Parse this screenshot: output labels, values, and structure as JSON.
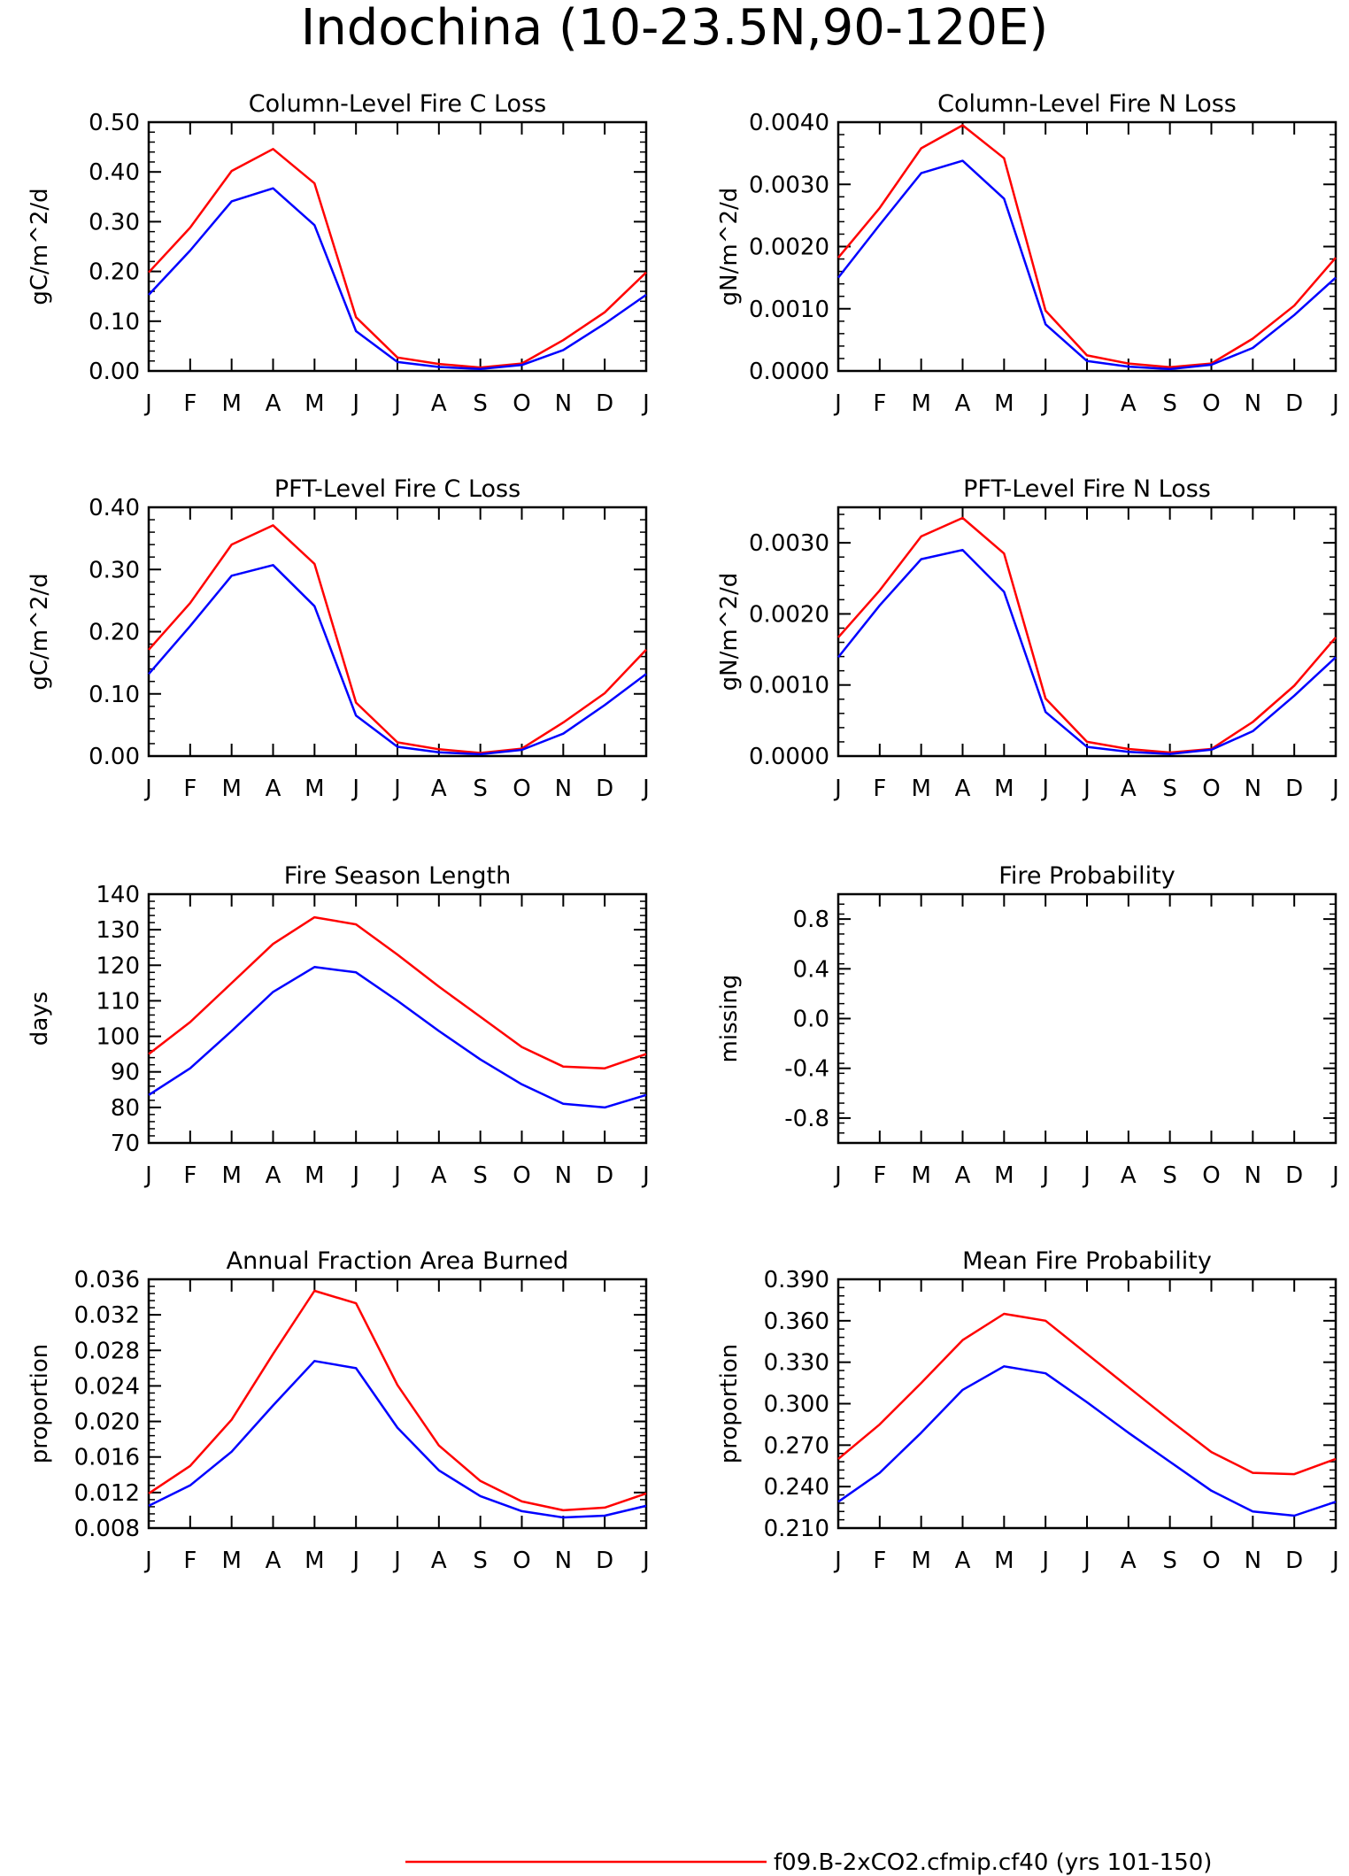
{
  "figure": {
    "title": "Indochina (10-23.5N,90-120E)",
    "legend": [
      {
        "label": "f09.B-2xCO2.cfmip.cf40 (yrs 101-150)",
        "color": "#ff0000"
      }
    ]
  },
  "colors": {
    "series_a": "#ff0000",
    "series_b": "#0000ff",
    "axis": "#000000"
  },
  "chart_data": [
    {
      "type": "line",
      "title": "Column-Level Fire C Loss",
      "ylabel": "gC/m^2/d",
      "categories": [
        "J",
        "F",
        "M",
        "A",
        "M",
        "J",
        "J",
        "A",
        "S",
        "O",
        "N",
        "D",
        "J"
      ],
      "ylim": [
        0,
        0.5
      ],
      "yticks": [
        "0.00",
        "0.10",
        "0.20",
        "0.30",
        "0.40",
        "0.50"
      ],
      "series": [
        {
          "color": "#ff0000",
          "values": [
            0.198,
            0.288,
            0.402,
            0.446,
            0.377,
            0.108,
            0.027,
            0.014,
            0.007,
            0.015,
            0.062,
            0.118,
            0.198
          ]
        },
        {
          "color": "#0000ff",
          "values": [
            0.153,
            0.242,
            0.341,
            0.367,
            0.293,
            0.08,
            0.018,
            0.008,
            0.004,
            0.012,
            0.042,
            0.095,
            0.153
          ]
        }
      ]
    },
    {
      "type": "line",
      "title": "Column-Level Fire N Loss",
      "ylabel": "gN/m^2/d",
      "categories": [
        "J",
        "F",
        "M",
        "A",
        "M",
        "J",
        "J",
        "A",
        "S",
        "O",
        "N",
        "D",
        "J"
      ],
      "ylim": [
        0,
        0.004
      ],
      "yticks": [
        "0.0000",
        "0.0010",
        "0.0020",
        "0.0030",
        "0.0040"
      ],
      "series": [
        {
          "color": "#ff0000",
          "values": [
            0.00182,
            0.00262,
            0.00358,
            0.00395,
            0.00342,
            0.00097,
            0.00025,
            0.00012,
            6e-05,
            0.00012,
            0.00052,
            0.00105,
            0.00182
          ]
        },
        {
          "color": "#0000ff",
          "values": [
            0.0015,
            0.00235,
            0.00318,
            0.00338,
            0.00277,
            0.00075,
            0.00016,
            7e-05,
            3e-05,
            0.0001,
            0.00037,
            0.0009,
            0.0015
          ]
        }
      ]
    },
    {
      "type": "line",
      "title": "PFT-Level Fire C Loss",
      "ylabel": "gC/m^2/d",
      "categories": [
        "J",
        "F",
        "M",
        "A",
        "M",
        "J",
        "J",
        "A",
        "S",
        "O",
        "N",
        "D",
        "J"
      ],
      "ylim": [
        0,
        0.4
      ],
      "yticks": [
        "0.00",
        "0.10",
        "0.20",
        "0.30",
        "0.40"
      ],
      "series": [
        {
          "color": "#ff0000",
          "values": [
            0.171,
            0.246,
            0.34,
            0.371,
            0.309,
            0.086,
            0.022,
            0.011,
            0.005,
            0.012,
            0.054,
            0.101,
            0.171
          ]
        },
        {
          "color": "#0000ff",
          "values": [
            0.132,
            0.209,
            0.29,
            0.307,
            0.241,
            0.065,
            0.015,
            0.006,
            0.003,
            0.01,
            0.036,
            0.082,
            0.132
          ]
        }
      ]
    },
    {
      "type": "line",
      "title": "PFT-Level Fire N Loss",
      "ylabel": "gN/m^2/d",
      "categories": [
        "J",
        "F",
        "M",
        "A",
        "M",
        "J",
        "J",
        "A",
        "S",
        "O",
        "N",
        "D",
        "J"
      ],
      "ylim": [
        0,
        0.0035
      ],
      "yticks": [
        "0.0000",
        "0.0010",
        "0.0020",
        "0.0030"
      ],
      "series": [
        {
          "color": "#ff0000",
          "values": [
            0.00167,
            0.00233,
            0.00309,
            0.00335,
            0.00285,
            0.00081,
            0.0002,
            0.0001,
            5e-05,
            0.0001,
            0.00048,
            0.00099,
            0.00167
          ]
        },
        {
          "color": "#0000ff",
          "values": [
            0.00139,
            0.00212,
            0.00277,
            0.0029,
            0.00231,
            0.00062,
            0.00013,
            6e-05,
            3e-05,
            9e-05,
            0.00035,
            0.00085,
            0.00139
          ]
        }
      ]
    },
    {
      "type": "line",
      "title": "Fire Season Length",
      "ylabel": "days",
      "categories": [
        "J",
        "F",
        "M",
        "A",
        "M",
        "J",
        "J",
        "A",
        "S",
        "O",
        "N",
        "D",
        "J"
      ],
      "ylim": [
        70,
        140
      ],
      "yticks": [
        "70",
        "80",
        "90",
        "100",
        "110",
        "120",
        "130",
        "140"
      ],
      "series": [
        {
          "color": "#ff0000",
          "values": [
            95,
            104,
            115,
            126,
            133.5,
            131.5,
            123,
            114,
            105.5,
            97,
            91.5,
            91,
            95
          ]
        },
        {
          "color": "#0000ff",
          "values": [
            83.5,
            91,
            101.5,
            112.5,
            119.5,
            118,
            110,
            101.5,
            93.5,
            86.5,
            81,
            80,
            83.5
          ]
        }
      ]
    },
    {
      "type": "line",
      "title": "Fire Probability",
      "ylabel": "missing",
      "categories": [
        "J",
        "F",
        "M",
        "A",
        "M",
        "J",
        "J",
        "A",
        "S",
        "O",
        "N",
        "D",
        "J"
      ],
      "ylim": [
        -1.0,
        1.0
      ],
      "yticks": [
        "-0.8",
        "-0.4",
        "0.0",
        "0.4",
        "0.8"
      ],
      "ytick_values": [
        -0.8,
        -0.4,
        0.0,
        0.4,
        0.8
      ],
      "series": []
    },
    {
      "type": "line",
      "title": "Annual Fraction Area Burned",
      "ylabel": "proportion",
      "categories": [
        "J",
        "F",
        "M",
        "A",
        "M",
        "J",
        "J",
        "A",
        "S",
        "O",
        "N",
        "D",
        "J"
      ],
      "ylim": [
        0.008,
        0.036
      ],
      "yticks": [
        "0.008",
        "0.012",
        "0.016",
        "0.020",
        "0.024",
        "0.028",
        "0.032",
        "0.036"
      ],
      "series": [
        {
          "color": "#ff0000",
          "values": [
            0.0119,
            0.015,
            0.0202,
            0.0276,
            0.0347,
            0.0333,
            0.0241,
            0.0173,
            0.0133,
            0.011,
            0.01,
            0.0103,
            0.0119
          ]
        },
        {
          "color": "#0000ff",
          "values": [
            0.0105,
            0.0128,
            0.0166,
            0.0218,
            0.0268,
            0.026,
            0.0193,
            0.0145,
            0.0116,
            0.0099,
            0.0092,
            0.0094,
            0.0105
          ]
        }
      ]
    },
    {
      "type": "line",
      "title": "Mean Fire Probability",
      "ylabel": "proportion",
      "categories": [
        "J",
        "F",
        "M",
        "A",
        "M",
        "J",
        "J",
        "A",
        "S",
        "O",
        "N",
        "D",
        "J"
      ],
      "ylim": [
        0.21,
        0.39
      ],
      "yticks": [
        "0.210",
        "0.240",
        "0.270",
        "0.300",
        "0.330",
        "0.360",
        "0.390"
      ],
      "series": [
        {
          "color": "#ff0000",
          "values": [
            0.26,
            0.285,
            0.315,
            0.346,
            0.365,
            0.36,
            0.336,
            0.312,
            0.288,
            0.265,
            0.25,
            0.249,
            0.26
          ]
        },
        {
          "color": "#0000ff",
          "values": [
            0.229,
            0.25,
            0.279,
            0.31,
            0.327,
            0.322,
            0.301,
            0.279,
            0.258,
            0.237,
            0.222,
            0.219,
            0.229
          ]
        }
      ]
    }
  ]
}
